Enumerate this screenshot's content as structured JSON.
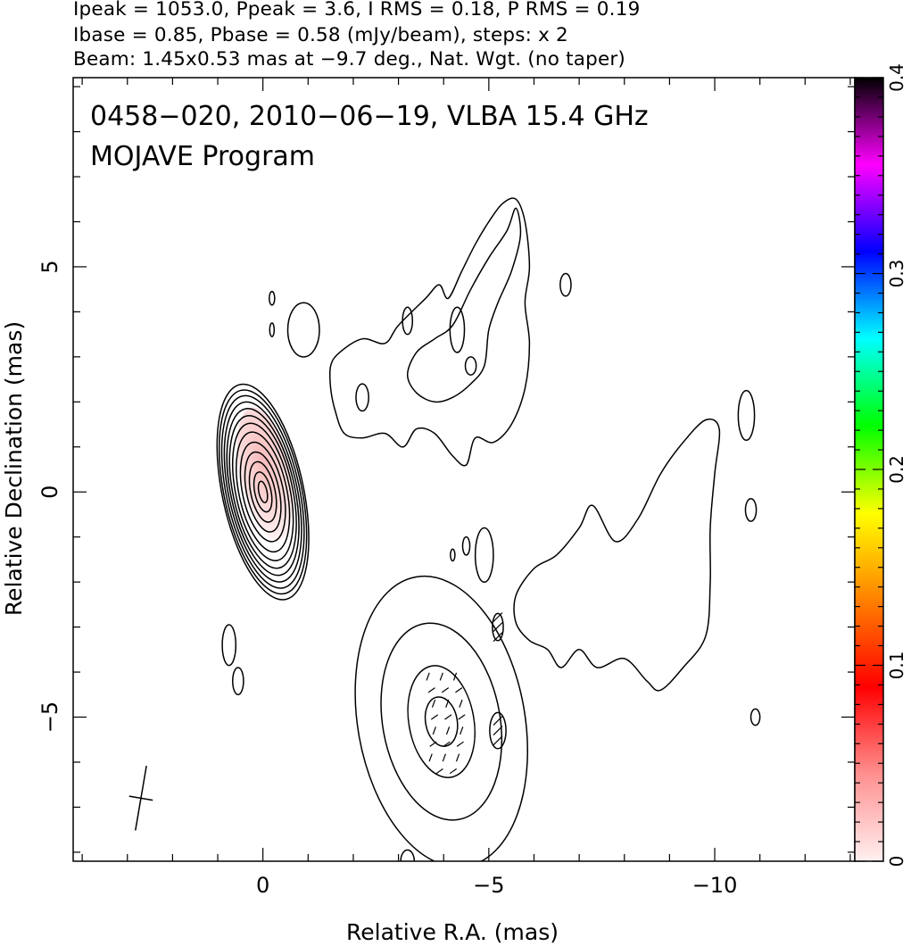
{
  "header": {
    "line1": "Ipeak = 1053.0, Ppeak = 3.6, I RMS = 0.18, P RMS = 0.19",
    "line2": "Ibase = 0.85, Pbase = 0.58 (mJy/beam), steps: x 2",
    "line3": "Beam: 1.45x0.53 mas at −9.7 deg., Nat. Wgt. (no taper)"
  },
  "chart_data": {
    "type": "contour",
    "title": "0458−020, 2010−06−19, VLBA 15.4 GHz",
    "subtitle": "MOJAVE Program",
    "xlabel": "Relative R.A. (mas)",
    "ylabel": "Relative Declination (mas)",
    "xlim": [
      4.2,
      -13.1
    ],
    "ylim": [
      -8.2,
      9.2
    ],
    "x_ticks": [
      {
        "value": 0,
        "label": "0"
      },
      {
        "value": -5,
        "label": "−5"
      },
      {
        "value": -10,
        "label": "−10"
      }
    ],
    "y_ticks": [
      {
        "value": 5,
        "label": "5"
      },
      {
        "value": 0,
        "label": "0"
      },
      {
        "value": -5,
        "label": "−5"
      }
    ],
    "colorbar": {
      "range": [
        0,
        0.4
      ],
      "ticks": [
        {
          "value": 0,
          "label": "0"
        },
        {
          "value": 0.1,
          "label": "0.1"
        },
        {
          "value": 0.2,
          "label": "0.2"
        },
        {
          "value": 0.3,
          "label": "0.3"
        },
        {
          "value": 0.4,
          "label": "0.4"
        }
      ],
      "colors": [
        "#fff0f0",
        "#ff9090",
        "#ff0000",
        "#ff8000",
        "#ffff00",
        "#00ff00",
        "#00ffff",
        "#0000ff",
        "#ff00ff",
        "#000000"
      ]
    },
    "core": {
      "ra": 0.0,
      "dec": 0.0,
      "pa_deg": -12,
      "axes_mas": [
        [
          0.09,
          0.24
        ],
        [
          0.18,
          0.45
        ],
        [
          0.27,
          0.68
        ],
        [
          0.36,
          0.9
        ],
        [
          0.45,
          1.12
        ],
        [
          0.53,
          1.35
        ],
        [
          0.6,
          1.55
        ],
        [
          0.66,
          1.72
        ],
        [
          0.71,
          1.88
        ],
        [
          0.76,
          2.03
        ],
        [
          0.81,
          2.17
        ],
        [
          0.86,
          2.3
        ],
        [
          0.9,
          2.43
        ]
      ]
    },
    "fractional_pol_blob": {
      "ra": -0.05,
      "dec": 0.4,
      "pa_deg": -12,
      "axes_mas": [
        0.55,
        1.5
      ]
    },
    "features": [
      {
        "name": "jet-lower-component",
        "ra": -3.95,
        "dec": -5.1,
        "pa_deg": -10,
        "axes_mas": [
          [
            0.35,
            0.55
          ],
          [
            0.72,
            1.25
          ],
          [
            1.3,
            2.2
          ],
          [
            1.85,
            3.25
          ]
        ]
      },
      {
        "name": "upper-jet",
        "outline": [
          [
            -1.5,
            2.8
          ],
          [
            -1.7,
            3.1
          ],
          [
            -2.2,
            3.4
          ],
          [
            -2.7,
            3.3
          ],
          [
            -3.0,
            3.7
          ],
          [
            -3.6,
            4.3
          ],
          [
            -3.9,
            4.6
          ],
          [
            -4.1,
            4.3
          ],
          [
            -4.4,
            4.9
          ],
          [
            -4.7,
            5.5
          ],
          [
            -5.0,
            6.0
          ],
          [
            -5.3,
            6.4
          ],
          [
            -5.6,
            6.5
          ],
          [
            -5.8,
            6.0
          ],
          [
            -5.9,
            5.0
          ],
          [
            -5.8,
            4.2
          ],
          [
            -5.9,
            3.3
          ],
          [
            -5.8,
            2.3
          ],
          [
            -5.5,
            1.5
          ],
          [
            -5.1,
            1.1
          ],
          [
            -4.7,
            1.2
          ],
          [
            -4.5,
            0.6
          ],
          [
            -4.2,
            0.8
          ],
          [
            -3.8,
            1.3
          ],
          [
            -3.4,
            1.4
          ],
          [
            -3.1,
            1.0
          ],
          [
            -2.7,
            1.3
          ],
          [
            -2.2,
            1.2
          ],
          [
            -1.8,
            1.3
          ],
          [
            -1.6,
            1.8
          ],
          [
            -1.5,
            2.3
          ]
        ]
      },
      {
        "name": "upper-jet-inner",
        "outline": [
          [
            -3.2,
            2.6
          ],
          [
            -3.4,
            3.1
          ],
          [
            -3.8,
            3.4
          ],
          [
            -4.2,
            3.7
          ],
          [
            -4.6,
            4.5
          ],
          [
            -5.0,
            5.2
          ],
          [
            -5.4,
            5.8
          ],
          [
            -5.6,
            6.3
          ],
          [
            -5.7,
            5.7
          ],
          [
            -5.5,
            4.9
          ],
          [
            -5.2,
            4.2
          ],
          [
            -5.0,
            3.6
          ],
          [
            -4.9,
            2.8
          ],
          [
            -4.6,
            2.4
          ],
          [
            -4.2,
            2.1
          ],
          [
            -3.8,
            2.0
          ],
          [
            -3.4,
            2.2
          ]
        ]
      },
      {
        "name": "lower-jet-plume",
        "outline": [
          [
            -5.6,
            -2.3
          ],
          [
            -6.0,
            -1.7
          ],
          [
            -6.5,
            -1.4
          ],
          [
            -7.0,
            -0.8
          ],
          [
            -7.3,
            -0.3
          ],
          [
            -7.8,
            -1.1
          ],
          [
            -8.3,
            -0.6
          ],
          [
            -8.8,
            0.4
          ],
          [
            -9.3,
            1.1
          ],
          [
            -9.8,
            1.6
          ],
          [
            -10.1,
            1.4
          ],
          [
            -10.0,
            0.4
          ],
          [
            -9.9,
            -0.8
          ],
          [
            -9.9,
            -2.0
          ],
          [
            -9.8,
            -3.2
          ],
          [
            -9.3,
            -3.9
          ],
          [
            -8.8,
            -4.4
          ],
          [
            -8.5,
            -4.2
          ],
          [
            -8.0,
            -3.7
          ],
          [
            -7.4,
            -3.9
          ],
          [
            -7.0,
            -3.5
          ],
          [
            -6.6,
            -3.9
          ],
          [
            -6.3,
            -3.5
          ],
          [
            -5.9,
            -3.3
          ],
          [
            -5.6,
            -2.9
          ]
        ]
      },
      {
        "name": "small-islands",
        "ellipses": [
          [
            -0.9,
            3.6,
            0.35,
            0.6
          ],
          [
            -0.2,
            4.3,
            0.06,
            0.15
          ],
          [
            -0.2,
            3.6,
            0.05,
            0.15
          ],
          [
            -3.2,
            3.8,
            0.11,
            0.3
          ],
          [
            -2.2,
            2.1,
            0.14,
            0.3
          ],
          [
            -4.3,
            3.6,
            0.16,
            0.5
          ],
          [
            -4.6,
            2.8,
            0.12,
            0.2
          ],
          [
            -6.7,
            4.6,
            0.12,
            0.25
          ],
          [
            -10.7,
            1.7,
            0.18,
            0.55
          ],
          [
            -10.8,
            -0.4,
            0.12,
            0.25
          ],
          [
            -10.9,
            -5.0,
            0.1,
            0.18
          ],
          [
            -4.5,
            -1.2,
            0.08,
            0.2
          ],
          [
            -4.2,
            -1.4,
            0.05,
            0.13
          ],
          [
            -4.9,
            -1.4,
            0.2,
            0.6
          ],
          [
            -5.2,
            -3.0,
            0.12,
            0.3
          ],
          [
            -5.2,
            -5.3,
            0.18,
            0.4
          ],
          [
            0.75,
            -3.4,
            0.15,
            0.45
          ],
          [
            0.55,
            -4.2,
            0.12,
            0.3
          ],
          [
            -3.2,
            -8.2,
            0.15,
            0.25
          ]
        ]
      }
    ],
    "beam": {
      "ra": 2.7,
      "dec": -6.8,
      "major_mas": 1.45,
      "minor_mas": 0.53,
      "pa_deg": -9.7
    }
  }
}
